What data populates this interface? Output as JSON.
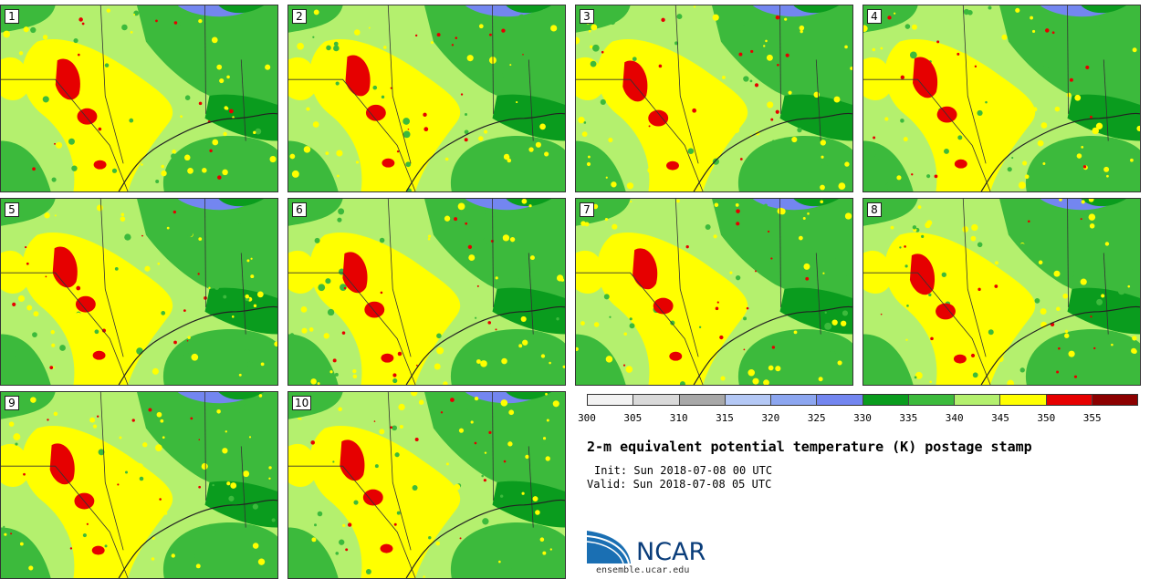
{
  "stamps": [
    {
      "label": "1"
    },
    {
      "label": "2"
    },
    {
      "label": "3"
    },
    {
      "label": "4"
    },
    {
      "label": "5"
    },
    {
      "label": "6"
    },
    {
      "label": "7"
    },
    {
      "label": "8"
    },
    {
      "label": "9"
    },
    {
      "label": "10"
    }
  ],
  "colorbar": {
    "colors": [
      "#f2f2f2",
      "#d9d9d9",
      "#a8a8a8",
      "#b4c8f5",
      "#8ca6f0",
      "#7386f0",
      "#0a9c1e",
      "#3cba3c",
      "#b4f06e",
      "#ffff00",
      "#e60000",
      "#8c0000"
    ],
    "ticks": [
      "300",
      "305",
      "310",
      "315",
      "320",
      "325",
      "330",
      "335",
      "340",
      "345",
      "350",
      "355"
    ]
  },
  "map_colors": {
    "base": "#b4f06e",
    "green": "#3cba3c",
    "dark_green": "#0a9c1e",
    "yellow": "#ffff00",
    "red": "#e60000",
    "lake": "#7386f0"
  },
  "title": "2-m equivalent potential temperature (K) postage stamp",
  "init_line": "Init: Sun 2018-07-08 00 UTC",
  "valid_line": "Valid: Sun 2018-07-08 05 UTC",
  "logo": {
    "text": "NCAR",
    "url": "ensemble.ucar.edu"
  }
}
